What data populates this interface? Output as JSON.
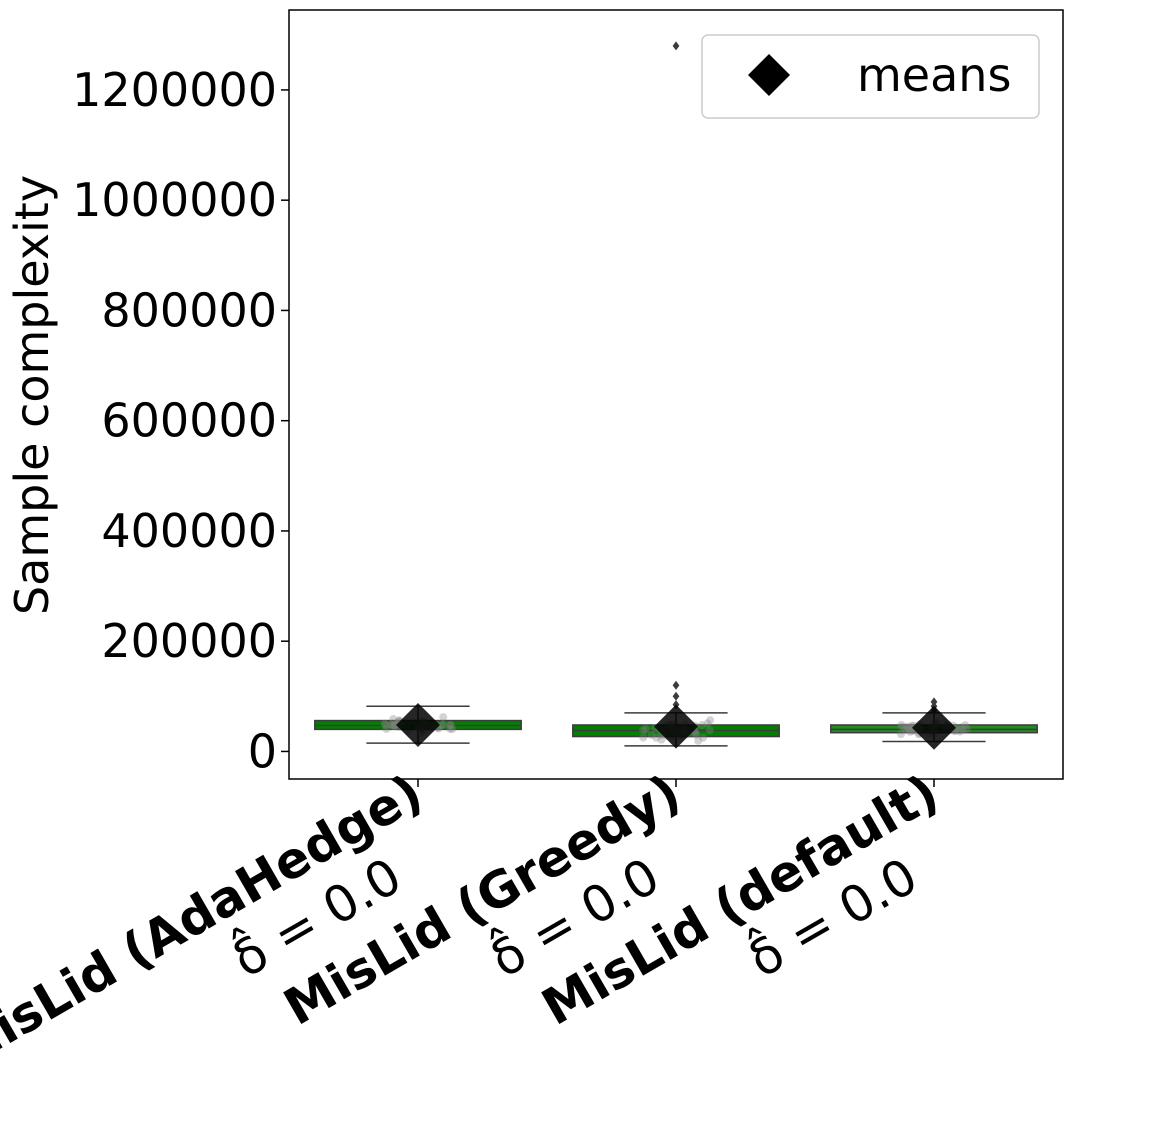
{
  "chart_data": {
    "type": "box",
    "ylabel": "Sample complexity",
    "yticks": [
      0,
      200000,
      400000,
      600000,
      800000,
      1000000,
      1200000
    ],
    "ylim": [
      -50000,
      1345000
    ],
    "grid": false,
    "legend": {
      "placement": "top-right",
      "entries": [
        {
          "label": "means",
          "marker": "diamond"
        }
      ]
    },
    "categories": [
      {
        "label": "MisLid (AdaHedge)",
        "sub": "δ̂ = 0.0"
      },
      {
        "label": "MisLid (Greedy)",
        "sub": "δ̂ = 0.0"
      },
      {
        "label": "MisLid (default)",
        "sub": "δ̂ = 0.0"
      }
    ],
    "boxes": [
      {
        "whisker_low": 15000,
        "q1": 40000,
        "median": 47000,
        "q3": 56000,
        "whisker_high": 82000,
        "mean": 48000,
        "fliers": [],
        "color": "#008000"
      },
      {
        "whisker_low": 10000,
        "q1": 27000,
        "median": 38000,
        "q3": 48000,
        "whisker_high": 70000,
        "mean": 45000,
        "fliers": [
          85000,
          100000,
          120000,
          1280000
        ],
        "color": "#008000"
      },
      {
        "whisker_low": 18000,
        "q1": 34000,
        "median": 40000,
        "q3": 48000,
        "whisker_high": 70000,
        "mean": 43000,
        "fliers": [
          75000,
          82000,
          90000
        ],
        "color": "#228b22"
      }
    ]
  }
}
